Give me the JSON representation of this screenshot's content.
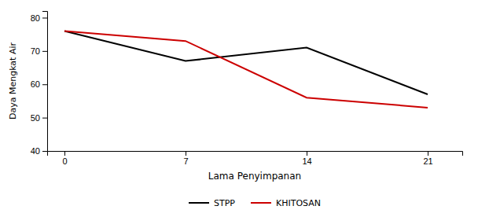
{
  "chart_data": {
    "type": "line",
    "x": [
      0,
      7,
      14,
      21
    ],
    "series": [
      {
        "name": "STPP",
        "color": "#000000",
        "values": [
          76,
          67,
          71,
          57
        ]
      },
      {
        "name": "KHITOSAN",
        "color": "#cc0000",
        "values": [
          76,
          73,
          56,
          53
        ]
      }
    ],
    "x_label": "Lama Penyimpanan",
    "y_label": "Daya Mengkat Air",
    "xlim": [
      -1,
      23
    ],
    "xticks": [
      0,
      7,
      14,
      21
    ],
    "ylim": [
      40,
      82
    ],
    "yticks": [
      40,
      50,
      60,
      70,
      80
    ],
    "grid": false,
    "legend": "bottom"
  }
}
